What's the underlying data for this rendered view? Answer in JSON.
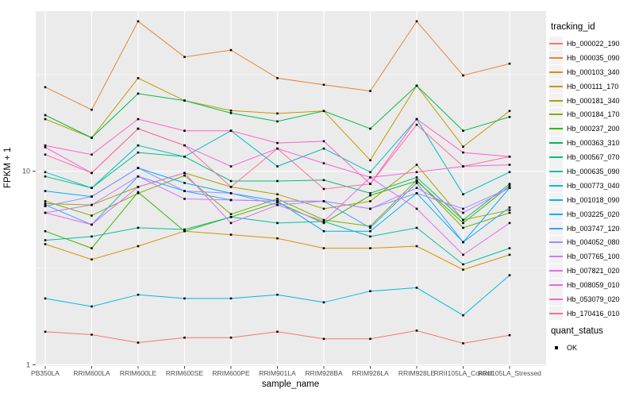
{
  "chart_data": {
    "type": "line",
    "title": "",
    "xlabel": "sample_name",
    "ylabel": "FPKM + 1",
    "y_scale": "log10",
    "y_ticks": [
      1,
      10
    ],
    "y_minor_gridlines": [
      3.162,
      31.623
    ],
    "ylim": [
      0.98,
      67
    ],
    "grid": true,
    "panel_background": "#EBEBEB",
    "point_marker": {
      "shape": "square",
      "color": "#000000"
    },
    "categories": [
      "PB350LA",
      "RRIM600LA",
      "RRIM600LE",
      "RRIM600SE",
      "RRIM600PE",
      "RRIM901LA",
      "RRIM928BA",
      "RRIM928LA",
      "RRIM928LE",
      "RRII105LA_Control",
      "RRII105LA_Stressed"
    ],
    "series": [
      {
        "name": "Hb_000022_190",
        "color": "#F8766D",
        "values": [
          1.48,
          1.43,
          1.3,
          1.38,
          1.38,
          1.48,
          1.36,
          1.36,
          1.5,
          1.29,
          1.42
        ]
      },
      {
        "name": "Hb_000035_090",
        "color": "#EA8331",
        "values": [
          27.2,
          20.8,
          59.6,
          39.0,
          42.3,
          30.3,
          28.0,
          26.0,
          59.6,
          31.3,
          36.0
        ]
      },
      {
        "name": "Hb_000103_340",
        "color": "#D89000",
        "values": [
          4.2,
          3.5,
          4.1,
          4.9,
          4.7,
          4.5,
          4.0,
          4.0,
          4.1,
          3.1,
          3.7
        ]
      },
      {
        "name": "Hb_000111_170",
        "color": "#C09B00",
        "values": [
          18.6,
          14.9,
          30.3,
          23.2,
          20.6,
          19.9,
          20.5,
          11.4,
          27.7,
          13.4,
          20.5
        ]
      },
      {
        "name": "Hb_000181_340",
        "color": "#A3A500",
        "values": [
          6.8,
          6.7,
          8.3,
          9.8,
          8.3,
          7.6,
          6.4,
          7.0,
          10.8,
          5.6,
          6.3
        ]
      },
      {
        "name": "Hb_000184_170",
        "color": "#7CAE00",
        "values": [
          7.0,
          5.9,
          7.7,
          9.5,
          6.0,
          7.2,
          5.6,
          5.2,
          9.0,
          5.1,
          6.1
        ]
      },
      {
        "name": "Hb_000237_200",
        "color": "#39B600",
        "values": [
          4.9,
          4.0,
          7.8,
          4.9,
          5.8,
          6.9,
          5.4,
          7.5,
          8.9,
          5.4,
          8.4
        ]
      },
      {
        "name": "Hb_000363_310",
        "color": "#00BB4E",
        "values": [
          19.5,
          14.9,
          25.2,
          23.2,
          20.0,
          18.1,
          20.5,
          16.6,
          27.7,
          16.2,
          19.1
        ]
      },
      {
        "name": "Hb_000567_070",
        "color": "#00BF7D",
        "values": [
          9.4,
          8.2,
          12.5,
          11.9,
          8.9,
          8.9,
          9.0,
          7.7,
          9.3,
          5.6,
          8.6
        ]
      },
      {
        "name": "Hb_000635_090",
        "color": "#00C1A3",
        "values": [
          4.4,
          4.6,
          5.1,
          5.0,
          5.8,
          5.4,
          5.5,
          4.6,
          5.1,
          3.3,
          4.0
        ]
      },
      {
        "name": "Hb_000773_040",
        "color": "#00BFC4",
        "values": [
          9.9,
          8.2,
          13.6,
          11.9,
          16.2,
          10.6,
          13.1,
          9.9,
          18.6,
          7.6,
          9.9
        ]
      },
      {
        "name": "Hb_001018_090",
        "color": "#00BADE",
        "values": [
          2.2,
          2.0,
          2.3,
          2.2,
          2.2,
          2.3,
          2.1,
          2.4,
          2.5,
          1.8,
          2.9
        ]
      },
      {
        "name": "Hb_003225_020",
        "color": "#00B0F6",
        "values": [
          7.9,
          7.4,
          10.4,
          8.7,
          7.7,
          7.0,
          4.9,
          4.9,
          7.7,
          4.3,
          8.2
        ]
      },
      {
        "name": "Hb_003747_120",
        "color": "#35A2FF",
        "values": [
          6.7,
          5.3,
          9.4,
          7.9,
          7.1,
          7.0,
          7.0,
          5.1,
          8.7,
          4.3,
          6.5
        ]
      },
      {
        "name": "Hb_004052_080",
        "color": "#9590FF",
        "values": [
          6.6,
          7.4,
          10.4,
          7.9,
          7.7,
          6.7,
          7.0,
          6.4,
          7.7,
          6.4,
          8.2
        ]
      },
      {
        "name": "Hb_007765_100",
        "color": "#C77CFF",
        "values": [
          6.1,
          6.7,
          9.4,
          7.2,
          7.1,
          7.0,
          7.0,
          6.4,
          8.2,
          6.1,
          8.2
        ]
      },
      {
        "name": "Hb_007821_020",
        "color": "#E76BF3",
        "values": [
          6.1,
          5.3,
          8.3,
          9.8,
          5.4,
          6.7,
          5.5,
          9.3,
          6.4,
          3.7,
          5.4
        ]
      },
      {
        "name": "Hb_008059_010",
        "color": "#FA62DB",
        "values": [
          13.3,
          9.8,
          16.6,
          13.6,
          10.6,
          13.1,
          11.0,
          9.3,
          9.9,
          10.6,
          10.8
        ]
      },
      {
        "name": "Hb_053079_020",
        "color": "#FF61CC",
        "values": [
          13.6,
          12.2,
          18.6,
          16.2,
          16.2,
          14.0,
          14.3,
          8.6,
          18.6,
          12.5,
          11.9
        ]
      },
      {
        "name": "Hb_170416_010",
        "color": "#FF6A98",
        "values": [
          12.2,
          9.8,
          16.6,
          13.6,
          8.3,
          13.1,
          8.1,
          8.6,
          17.4,
          10.6,
          11.9
        ]
      }
    ],
    "legend": {
      "title": "tracking_id",
      "position": "right"
    },
    "legend2": {
      "title": "quant_status",
      "items": [
        {
          "label": "OK",
          "marker": "black-square"
        }
      ]
    }
  }
}
